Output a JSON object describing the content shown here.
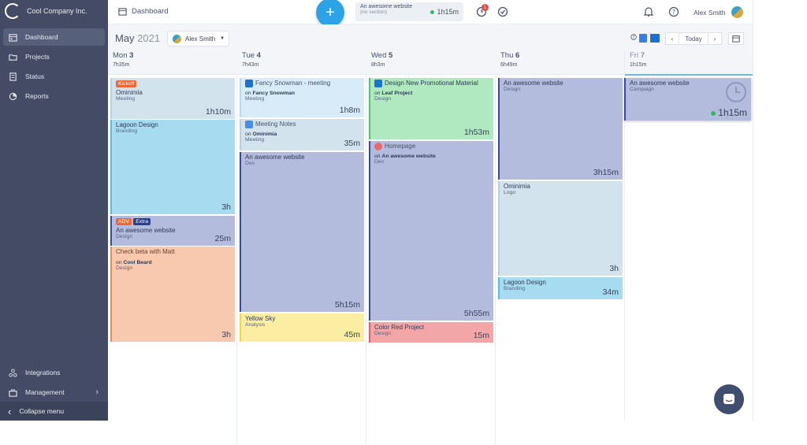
{
  "sidebar": {
    "company": "Cool Company Inc.",
    "items": [
      {
        "label": "Dashboard",
        "icon": "calendar-icon"
      },
      {
        "label": "Projects",
        "icon": "folder-icon"
      },
      {
        "label": "Status",
        "icon": "status-icon"
      },
      {
        "label": "Reports",
        "icon": "reports-icon"
      }
    ],
    "bottom_items": [
      {
        "label": "Integrations",
        "icon": "integrations-icon"
      },
      {
        "label": "Management",
        "icon": "management-icon"
      }
    ],
    "collapse_label": "Collapse menu"
  },
  "topbar": {
    "breadcrumb": "Dashboard",
    "timer": {
      "title": "An awesome website",
      "subtitle": "(no section)",
      "duration": "1h15m"
    },
    "notification_count": "1",
    "user_name": "Alex Smith"
  },
  "calendar": {
    "month": "May",
    "year": "2021",
    "user_filter": "Alex Smith",
    "today_label": "Today",
    "days": [
      {
        "name": "Mon",
        "num": "3",
        "hours": "7h35m"
      },
      {
        "name": "Tue",
        "num": "4",
        "hours": "7h43m"
      },
      {
        "name": "Wed",
        "num": "5",
        "hours": "8h3m"
      },
      {
        "name": "Thu",
        "num": "6",
        "hours": "6h49m"
      },
      {
        "name": "Fri",
        "num": "7",
        "hours": "1h15m"
      }
    ],
    "events": {
      "mon": [
        {
          "tag": "Kickoff",
          "title": "Ominimia",
          "sub": "Meeting",
          "dur": "1h10m"
        },
        {
          "title": "Lagoon Design",
          "sub": "Branding",
          "dur": "3h"
        },
        {
          "tag1": "ADV",
          "tag2": "Extra",
          "title": "An awesome website",
          "sub": "Design",
          "dur": "25m"
        },
        {
          "title": "Check beta with Matt",
          "on": "on",
          "project": "Cool Beard",
          "sub": "Design",
          "dur": "3h"
        }
      ],
      "tue": [
        {
          "title": "Fancy Snowman - meeting",
          "on": "on",
          "project": "Fancy Snowman",
          "sub": "Meeting",
          "dur": "1h8m"
        },
        {
          "title": "Meeting Notes",
          "on": "on",
          "project": "Ominimia",
          "sub": "Meeting",
          "dur": "35m"
        },
        {
          "title": "An awesome website",
          "sub": "Dev",
          "dur": "5h15m"
        },
        {
          "title": "Yellow Sky",
          "sub": "Analysis",
          "dur": "45m"
        }
      ],
      "wed": [
        {
          "title": "Design New Promotional Material",
          "on": "on",
          "project": "Leaf Project",
          "sub": "Design",
          "dur": "1h53m"
        },
        {
          "title": "Homepage",
          "on": "on",
          "project": "An awesome website",
          "sub": "Dev",
          "dur": "5h55m"
        },
        {
          "title": "Color Red Project",
          "sub": "Design",
          "dur": "15m"
        }
      ],
      "thu": [
        {
          "title": "An awesome website",
          "sub": "Design",
          "dur": "3h15m"
        },
        {
          "title": "Ominimia",
          "sub": "Logo",
          "dur": "3h"
        },
        {
          "title": "Lagoon Design",
          "sub": "Branding",
          "dur": "34m"
        }
      ],
      "fri": [
        {
          "title": "An awesome website",
          "sub": "Campaign",
          "dur": "1h15m"
        }
      ]
    }
  },
  "colors": {
    "sidebar": "#434c64",
    "accent": "#2ba3e6",
    "running": "#38b76a"
  }
}
